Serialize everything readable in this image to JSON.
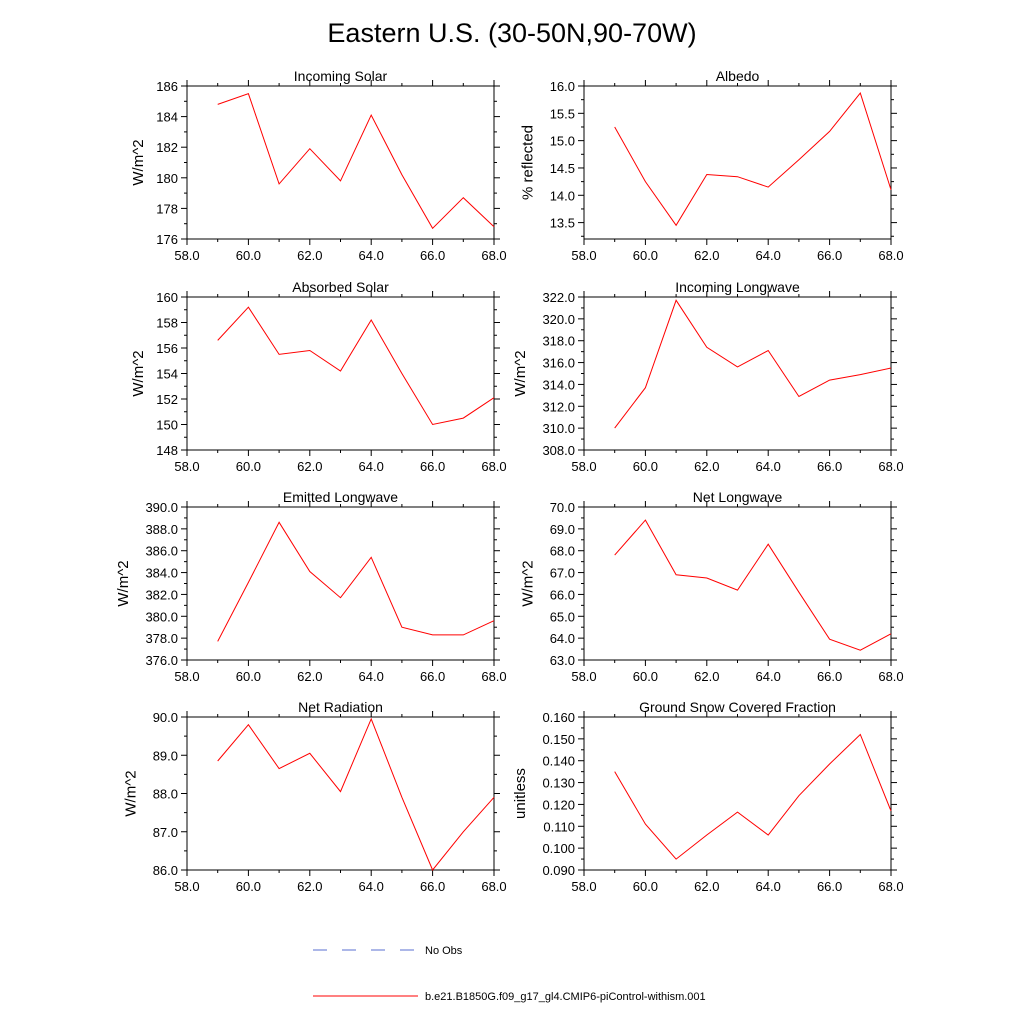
{
  "figure": {
    "title": "Eastern U.S. (30-50N,90-70W)",
    "legend": [
      {
        "label": "No Obs",
        "color": "#5a6fd0",
        "style": "dashed"
      },
      {
        "label": "b.e21.B1850G.f09_g17_gl4.CMIP6-piControl-withism.001",
        "color": "#ff0000",
        "style": "solid"
      }
    ]
  },
  "chart_data": [
    {
      "type": "line",
      "title": "Incoming Solar",
      "ylabel": "W/m^2",
      "xlim": [
        58,
        68
      ],
      "ylim": [
        176,
        186
      ],
      "xticks": [
        58,
        60,
        62,
        64,
        66,
        68
      ],
      "xtick_labels": [
        "58.0",
        "60.0",
        "62.0",
        "64.0",
        "66.0",
        "68.0"
      ],
      "yticks": [
        176,
        178,
        180,
        182,
        184,
        186
      ],
      "ytick_labels": [
        "176",
        "178",
        "180",
        "182",
        "184",
        "186"
      ],
      "grid": false,
      "series": [
        {
          "color": "#ff0000",
          "x": [
            59,
            60,
            61,
            62,
            63,
            64,
            65,
            66,
            67,
            68
          ],
          "y": [
            184.8,
            185.5,
            179.6,
            181.9,
            179.8,
            184.1,
            180.2,
            176.7,
            178.7,
            176.8
          ]
        }
      ]
    },
    {
      "type": "line",
      "title": "Albedo",
      "ylabel": "% reflected",
      "xlim": [
        58,
        68
      ],
      "ylim": [
        13.2,
        16.0
      ],
      "xticks": [
        58,
        60,
        62,
        64,
        66,
        68
      ],
      "xtick_labels": [
        "58.0",
        "60.0",
        "62.0",
        "64.0",
        "66.0",
        "68.0"
      ],
      "yticks": [
        13.5,
        14.0,
        14.5,
        15.0,
        15.5,
        16.0
      ],
      "ytick_labels": [
        "13.5",
        "14.0",
        "14.5",
        "15.0",
        "15.5",
        "16.0"
      ],
      "grid": false,
      "series": [
        {
          "color": "#ff0000",
          "x": [
            59,
            60,
            61,
            62,
            63,
            64,
            65,
            66,
            67,
            68
          ],
          "y": [
            15.25,
            14.25,
            13.45,
            14.38,
            14.34,
            14.15,
            14.65,
            15.17,
            15.87,
            14.1
          ]
        }
      ]
    },
    {
      "type": "line",
      "title": "Absorbed Solar",
      "ylabel": "W/m^2",
      "xlim": [
        58,
        68
      ],
      "ylim": [
        148,
        160
      ],
      "xticks": [
        58,
        60,
        62,
        64,
        66,
        68
      ],
      "xtick_labels": [
        "58.0",
        "60.0",
        "62.0",
        "64.0",
        "66.0",
        "68.0"
      ],
      "yticks": [
        148,
        150,
        152,
        154,
        156,
        158,
        160
      ],
      "ytick_labels": [
        "148",
        "150",
        "152",
        "154",
        "156",
        "158",
        "160"
      ],
      "grid": false,
      "series": [
        {
          "color": "#ff0000",
          "x": [
            59,
            60,
            61,
            62,
            63,
            64,
            65,
            66,
            67,
            68
          ],
          "y": [
            156.6,
            159.2,
            155.5,
            155.8,
            154.2,
            158.2,
            154.0,
            150.0,
            150.5,
            152.1
          ]
        }
      ]
    },
    {
      "type": "line",
      "title": "Incoming Longwave",
      "ylabel": "W/m^2",
      "xlim": [
        58,
        68
      ],
      "ylim": [
        308,
        322
      ],
      "xticks": [
        58,
        60,
        62,
        64,
        66,
        68
      ],
      "xtick_labels": [
        "58.0",
        "60.0",
        "62.0",
        "64.0",
        "66.0",
        "68.0"
      ],
      "yticks": [
        308,
        310,
        312,
        314,
        316,
        318,
        320,
        322
      ],
      "ytick_labels": [
        "308.0",
        "310.0",
        "312.0",
        "314.0",
        "316.0",
        "318.0",
        "320.0",
        "322.0"
      ],
      "grid": false,
      "series": [
        {
          "color": "#ff0000",
          "x": [
            59,
            60,
            61,
            62,
            63,
            64,
            65,
            66,
            67,
            68
          ],
          "y": [
            310.0,
            313.7,
            321.7,
            317.4,
            315.6,
            317.1,
            312.9,
            314.4,
            314.9,
            315.5
          ]
        }
      ]
    },
    {
      "type": "line",
      "title": "Emitted Longwave",
      "ylabel": "W/m^2",
      "xlim": [
        58,
        68
      ],
      "ylim": [
        376,
        390
      ],
      "xticks": [
        58,
        60,
        62,
        64,
        66,
        68
      ],
      "xtick_labels": [
        "58.0",
        "60.0",
        "62.0",
        "64.0",
        "66.0",
        "68.0"
      ],
      "yticks": [
        376,
        378,
        380,
        382,
        384,
        386,
        388,
        390
      ],
      "ytick_labels": [
        "376.0",
        "378.0",
        "380.0",
        "382.0",
        "384.0",
        "386.0",
        "388.0",
        "390.0"
      ],
      "grid": false,
      "series": [
        {
          "color": "#ff0000",
          "x": [
            59,
            60,
            61,
            62,
            63,
            64,
            65,
            66,
            67,
            68
          ],
          "y": [
            377.7,
            383.1,
            388.6,
            384.1,
            381.7,
            385.4,
            379.0,
            378.3,
            378.3,
            379.6
          ]
        }
      ]
    },
    {
      "type": "line",
      "title": "Net Longwave",
      "ylabel": "W/m^2",
      "xlim": [
        58,
        68
      ],
      "ylim": [
        63,
        70
      ],
      "xticks": [
        58,
        60,
        62,
        64,
        66,
        68
      ],
      "xtick_labels": [
        "58.0",
        "60.0",
        "62.0",
        "64.0",
        "66.0",
        "68.0"
      ],
      "yticks": [
        63,
        64,
        65,
        66,
        67,
        68,
        69,
        70
      ],
      "ytick_labels": [
        "63.0",
        "64.0",
        "65.0",
        "66.0",
        "67.0",
        "68.0",
        "69.0",
        "70.0"
      ],
      "grid": false,
      "series": [
        {
          "color": "#ff0000",
          "x": [
            59,
            60,
            61,
            62,
            63,
            64,
            65,
            66,
            67,
            68
          ],
          "y": [
            67.8,
            69.4,
            66.9,
            66.75,
            66.2,
            68.3,
            66.1,
            63.95,
            63.45,
            64.2
          ]
        }
      ]
    },
    {
      "type": "line",
      "title": "Net Radiation",
      "ylabel": "W/m^2",
      "xlim": [
        58,
        68
      ],
      "ylim": [
        86,
        90
      ],
      "xticks": [
        58,
        60,
        62,
        64,
        66,
        68
      ],
      "xtick_labels": [
        "58.0",
        "60.0",
        "62.0",
        "64.0",
        "66.0",
        "68.0"
      ],
      "yticks": [
        86,
        87,
        88,
        89,
        90
      ],
      "ytick_labels": [
        "86.0",
        "87.0",
        "88.0",
        "89.0",
        "90.0"
      ],
      "grid": false,
      "series": [
        {
          "color": "#ff0000",
          "x": [
            59,
            60,
            61,
            62,
            63,
            64,
            65,
            66,
            67,
            68
          ],
          "y": [
            88.85,
            89.8,
            88.65,
            89.05,
            88.05,
            89.95,
            87.9,
            86.0,
            87.0,
            87.9
          ]
        }
      ]
    },
    {
      "type": "line",
      "title": "Ground Snow Covered Fraction",
      "ylabel": "unitless",
      "xlim": [
        58,
        68
      ],
      "ylim": [
        0.09,
        0.16
      ],
      "xticks": [
        58,
        60,
        62,
        64,
        66,
        68
      ],
      "xtick_labels": [
        "58.0",
        "60.0",
        "62.0",
        "64.0",
        "66.0",
        "68.0"
      ],
      "yticks": [
        0.09,
        0.1,
        0.11,
        0.12,
        0.13,
        0.14,
        0.15,
        0.16
      ],
      "ytick_labels": [
        "0.090",
        "0.100",
        "0.110",
        "0.120",
        "0.130",
        "0.140",
        "0.150",
        "0.160"
      ],
      "grid": false,
      "series": [
        {
          "color": "#ff0000",
          "x": [
            59,
            60,
            61,
            62,
            63,
            64,
            65,
            66,
            67,
            68
          ],
          "y": [
            0.135,
            0.111,
            0.095,
            0.106,
            0.1165,
            0.106,
            0.124,
            0.1385,
            0.152,
            0.117
          ]
        }
      ]
    }
  ]
}
